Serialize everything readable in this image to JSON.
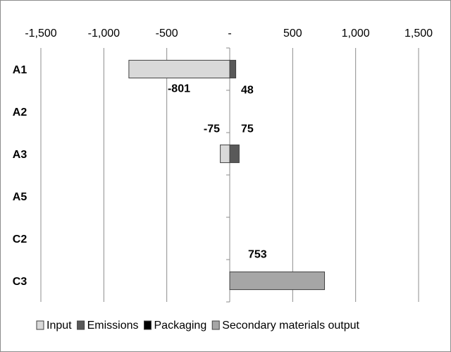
{
  "chart_data": {
    "type": "bar",
    "orientation": "horizontal",
    "stacked": true,
    "categories": [
      "A1",
      "A2",
      "A3",
      "A5",
      "C2",
      "C3"
    ],
    "series": [
      {
        "name": "Input",
        "values": [
          -801,
          0,
          -75,
          0,
          0,
          0
        ],
        "color": "#d9d9d9"
      },
      {
        "name": "Emissions",
        "values": [
          48,
          0,
          75,
          0,
          0,
          0
        ],
        "color": "#595959"
      },
      {
        "name": "Packaging",
        "values": [
          0,
          0,
          0,
          0,
          0,
          0
        ],
        "color": "#000000"
      },
      {
        "name": "Secondary materials output",
        "values": [
          0,
          0,
          0,
          0,
          0,
          753
        ],
        "color": "#a6a6a6"
      }
    ],
    "data_labels": [
      {
        "category": "A1",
        "series": "Input",
        "text": "-801"
      },
      {
        "category": "A1",
        "series": "Emissions",
        "text": "48"
      },
      {
        "category": "A3",
        "series": "Input",
        "text": "-75"
      },
      {
        "category": "A3",
        "series": "Emissions",
        "text": "75"
      },
      {
        "category": "C3",
        "series": "Secondary materials output",
        "text": "753"
      }
    ],
    "x_ticks": [
      "-1,500",
      "-1,000",
      "-500",
      "-",
      "500",
      "1,000",
      "1,500"
    ],
    "x_tick_values": [
      -1500,
      -1000,
      -500,
      0,
      500,
      1000,
      1500
    ],
    "xlim": [
      -1500,
      1500
    ],
    "x_axis_position": "top",
    "grid": true,
    "legend_position": "bottom"
  }
}
